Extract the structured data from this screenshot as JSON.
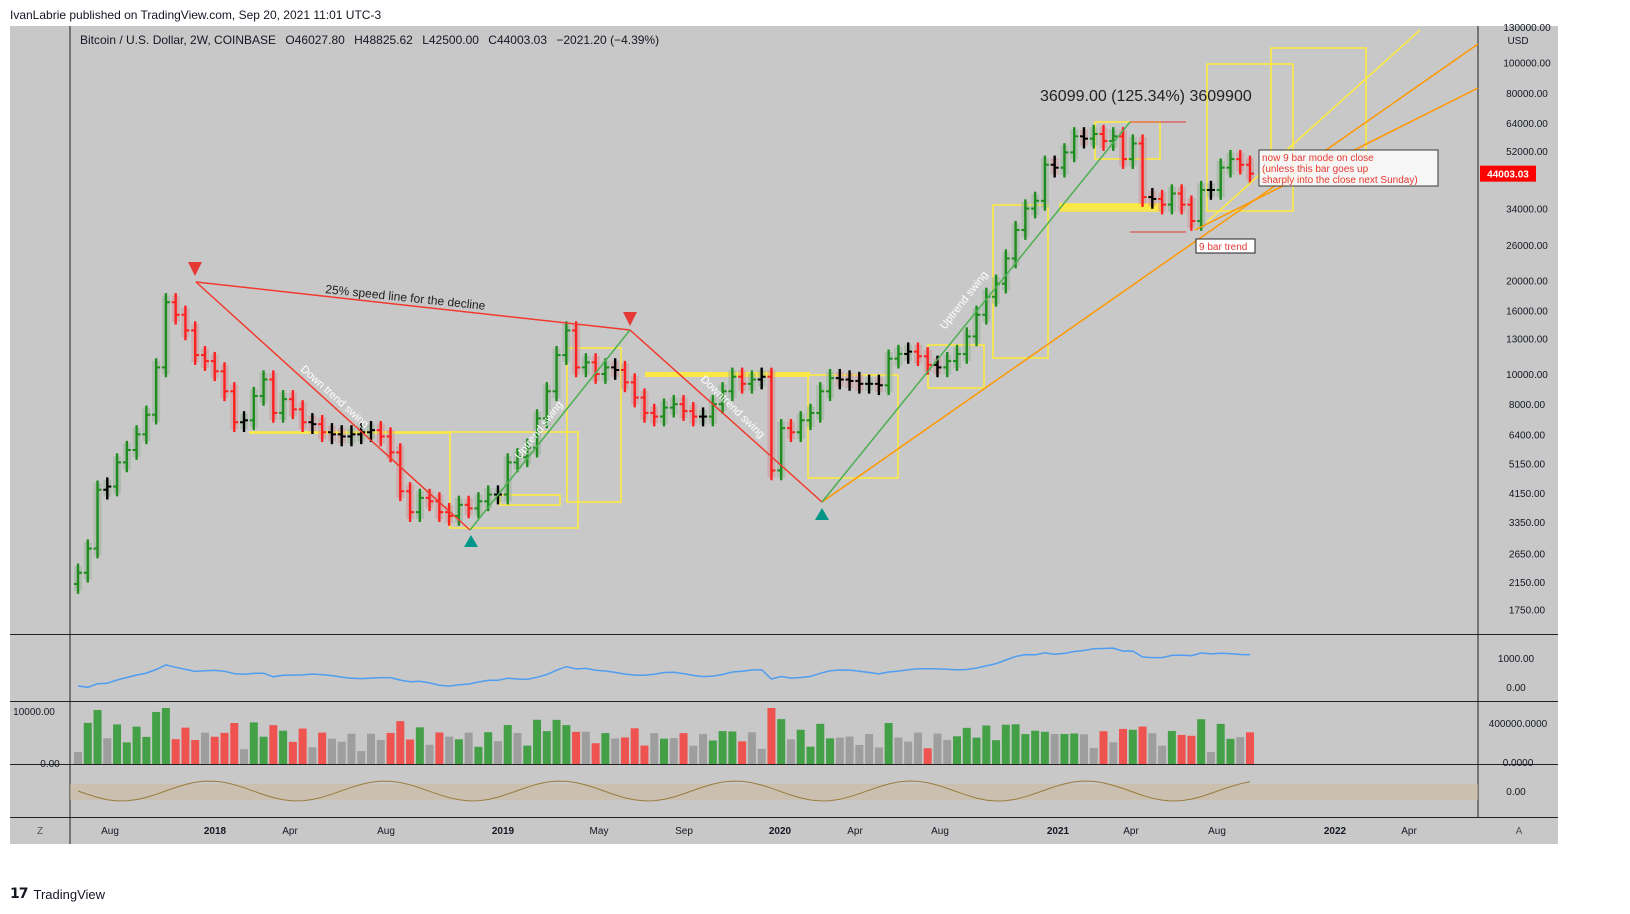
{
  "header": {
    "published": "IvanLabrie published on TradingView.com, Sep 20, 2021 11:01 UTC-3"
  },
  "footer": {
    "logo": "17",
    "brand": "TradingView"
  },
  "chart_data": {
    "type": "candlestick",
    "title": "Bitcoin / U.S. Dollar, 2W, COINBASE",
    "ohlc_summary": {
      "open": "O46027.80",
      "high": "H48825.62",
      "low": "L42500.00",
      "close": "C44003.03",
      "change": "−2021.20 (−4.39%)"
    },
    "currency": "USD",
    "scale": "log",
    "price_ticks": [
      "130000.00",
      "100000.00",
      "80000.00",
      "64000.00",
      "52000.00",
      "34000.00",
      "26000.00",
      "20000.00",
      "16000.00",
      "13000.00",
      "10000.00",
      "8000.00",
      "6400.00",
      "5150.00",
      "4150.00",
      "3350.00",
      "2650.00",
      "2150.00",
      "1750.00"
    ],
    "last_price_label": "44003.03",
    "x_ticks": [
      "Aug",
      "2018",
      "Apr",
      "Aug",
      "2019",
      "May",
      "Sep",
      "2020",
      "Apr",
      "Aug",
      "2021",
      "Apr",
      "Aug",
      "2022",
      "Apr"
    ],
    "axis_corner_left": "Z",
    "axis_corner_right": "A",
    "close_series": [
      2300,
      2750,
      4250,
      4350,
      5200,
      5700,
      6400,
      7400,
      10500,
      17000,
      15500,
      13800,
      11500,
      11000,
      10200,
      8800,
      7000,
      7100,
      8500,
      9600,
      7500,
      8300,
      7700,
      7000,
      6900,
      6500,
      6400,
      6300,
      6400,
      6500,
      6600,
      6300,
      5600,
      4200,
      3600,
      4000,
      3900,
      3600,
      3500,
      3800,
      3700,
      3900,
      4100,
      4100,
      5200,
      5400,
      5800,
      7200,
      8800,
      11500,
      13800,
      10500,
      10900,
      10000,
      10500,
      10300,
      9400,
      8400,
      7500,
      7300,
      7800,
      8000,
      7600,
      7300,
      7300,
      8000,
      8800,
      9800,
      9300,
      9600,
      9800,
      4900,
      6700,
      6500,
      7100,
      7500,
      8800,
      9700,
      9600,
      9500,
      9300,
      9300,
      9200,
      11200,
      11600,
      11800,
      11400,
      10700,
      10500,
      11000,
      11600,
      13200,
      15500,
      17700,
      19500,
      23500,
      29000,
      34000,
      36000,
      47000,
      46000,
      51500,
      58000,
      57000,
      59000,
      56000,
      58000,
      49000,
      55000,
      37000,
      36500,
      35000,
      38000,
      35000,
      31000,
      39000,
      39000,
      46000,
      49000,
      47000,
      44003
    ],
    "annotations": [
      "36099.00 (125.34%) 3609900",
      "25% speed line for the decline",
      "Down trend swing",
      "Uptrend swing",
      "Downtrend swing",
      "Uptrend swing",
      "now 9 bar mode on close",
      "(unless this bar goes up",
      "sharply into the close next Sunday)",
      "9 bar trend"
    ],
    "pane2": {
      "ticks": [
        "1000.00",
        "0.00"
      ]
    },
    "volume_pane": {
      "left_ticks": [
        "10000.00",
        "0.00"
      ],
      "right_ticks": [
        "400000.0000",
        "0.0000"
      ]
    },
    "pane4": {
      "ticks": [
        "0.00"
      ]
    },
    "colors": {
      "up": "#1e8c1e",
      "down": "#ff2020",
      "neutral": "#000000",
      "speed_line": "#f23a2e",
      "trend_up": "#4caf50",
      "fan": "#ff9800",
      "fan_light": "#ffeb3b",
      "box": "#ffeb3b",
      "pane_bg": "#c8c8c8",
      "osc_line": "#4f9df0",
      "last_price": "#ff0000"
    }
  }
}
